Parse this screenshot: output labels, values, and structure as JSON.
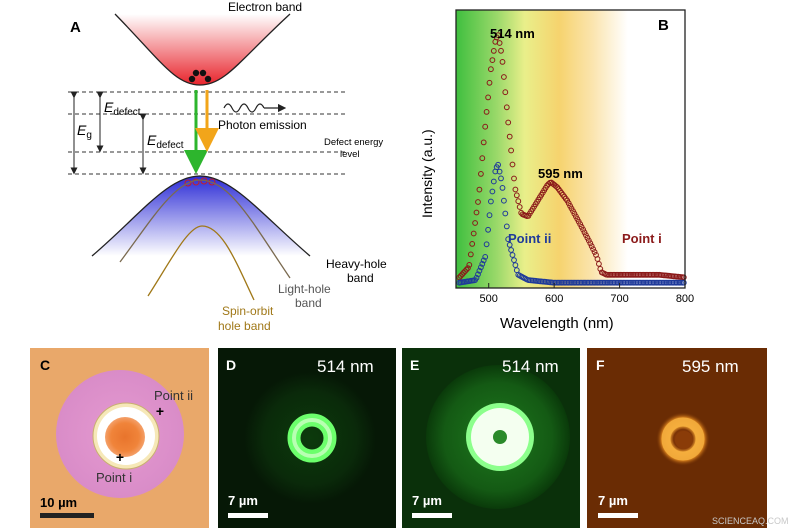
{
  "panelA": {
    "letter": "A",
    "electron_band": "Electron band",
    "eg_main": "E",
    "eg_sub": "g",
    "edefect1_main": "E",
    "edefect1_sub": "defect",
    "edefect2_main": "E",
    "edefect2_sub": "defect",
    "photon_emission": "Photon emission",
    "defect_level_line1": "Defect energy",
    "defect_level_line2": "level",
    "heavy_hole_line1": "Heavy-hole",
    "heavy_hole_line2": "band",
    "light_hole_line1": "Light-hole",
    "light_hole_line2": "band",
    "spin_orbit_line1": "Spin-orbit",
    "spin_orbit_line2": "hole band",
    "colors": {
      "electron_band": "#e8242c",
      "hole_band": "#2b2bd6",
      "green_arrow": "#2db52d",
      "orange_arrow": "#f2a51a",
      "spin_orbit": "#a07818"
    }
  },
  "panelB": {
    "letter": "B",
    "peak1_label": "514 nm",
    "peak2_label": "595 nm",
    "series1_label": "Point i",
    "series2_label": "Point ii",
    "ylabel": "Intensity (a.u.)",
    "xlabel": "Wavelength (nm)",
    "colors": {
      "series1": "#8b1a1a",
      "series2": "#1f3a9a"
    }
  },
  "chart_data": {
    "type": "scatter",
    "xlabel": "Wavelength (nm)",
    "ylabel": "Intensity (a.u.)",
    "xlim": [
      450,
      800
    ],
    "ylim": [
      0,
      1.05
    ],
    "xticks": [
      "500",
      "600",
      "700",
      "800"
    ],
    "y_ticks_shown": false,
    "series": [
      {
        "name": "Point i",
        "color": "#8b1a1a",
        "x": [
          455,
          470,
          485,
          495,
          503,
          510,
          514,
          520,
          530,
          540,
          550,
          560,
          575,
          590,
          595,
          605,
          620,
          640,
          655,
          665,
          672,
          680,
          700,
          730,
          760,
          800
        ],
        "y": [
          0.04,
          0.08,
          0.35,
          0.62,
          0.82,
          0.93,
          0.96,
          0.88,
          0.62,
          0.38,
          0.28,
          0.27,
          0.33,
          0.39,
          0.4,
          0.38,
          0.33,
          0.24,
          0.17,
          0.12,
          0.06,
          0.05,
          0.05,
          0.05,
          0.05,
          0.04
        ]
      },
      {
        "name": "Point ii",
        "color": "#1f3a9a",
        "x": [
          455,
          480,
          495,
          503,
          510,
          514,
          520,
          530,
          545,
          560,
          600,
          650,
          700,
          800
        ],
        "y": [
          0.02,
          0.03,
          0.12,
          0.32,
          0.44,
          0.47,
          0.4,
          0.18,
          0.05,
          0.03,
          0.02,
          0.02,
          0.02,
          0.02
        ]
      }
    ],
    "annotations": [
      "514 nm",
      "595 nm"
    ]
  },
  "panelC": {
    "letter": "C",
    "point_i": "Point i",
    "point_ii": "Point ii",
    "scale": "10 µm"
  },
  "panelD": {
    "letter": "D",
    "wavelength": "514 nm",
    "scale": "7 µm"
  },
  "panelE": {
    "letter": "E",
    "wavelength": "514 nm",
    "scale": "7 µm"
  },
  "panelF": {
    "letter": "F",
    "wavelength": "595 nm",
    "scale": "7 µm"
  },
  "watermark": "SCIENCEAQ.COM"
}
